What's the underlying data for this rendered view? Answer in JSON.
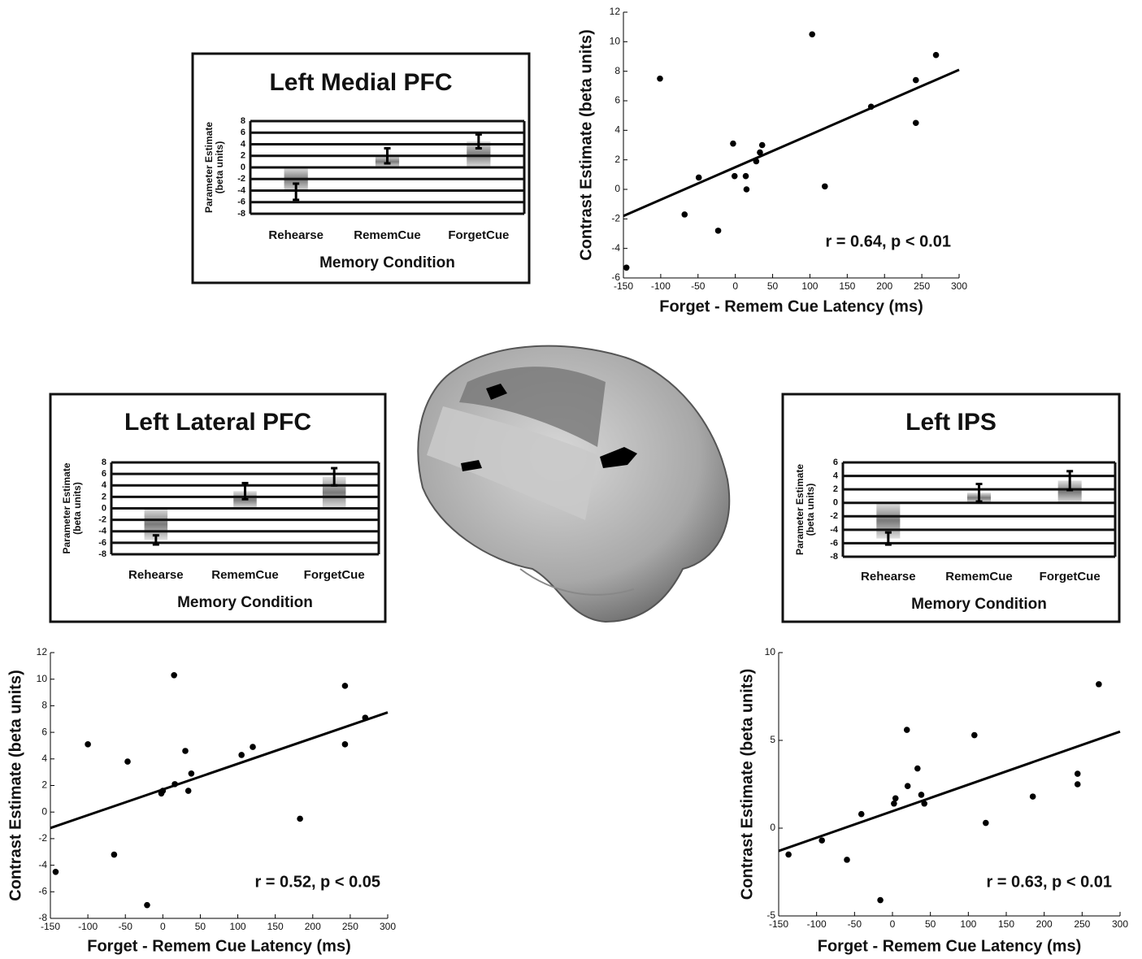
{
  "chart_data": [
    {
      "type": "bar",
      "title": "Left Medial PFC",
      "color": "#7a7a7a",
      "categories": [
        "Rehearse",
        "RememCue",
        "ForgetCue"
      ],
      "values": [
        -4.2,
        2,
        4.5
      ],
      "errors": [
        1.4,
        1.3,
        1.2
      ],
      "ylim": [
        -8,
        8
      ],
      "yticks": [
        -8,
        -6,
        -4,
        -2,
        0,
        2,
        4,
        6,
        8
      ],
      "ylabel": [
        "Parameter Estimate",
        "(beta units)"
      ],
      "xlabel": "Memory Condition",
      "grid": true
    },
    {
      "type": "scatter",
      "color": "#000000",
      "x": [
        -146,
        -101,
        -68,
        -49,
        -23,
        -3,
        -1,
        14,
        15,
        28,
        33,
        36,
        103,
        120,
        182,
        242,
        242,
        269
      ],
      "values": [
        -5.3,
        7.5,
        -1.7,
        0.8,
        -2.8,
        3.1,
        0.9,
        0.9,
        0,
        1.9,
        2.5,
        3.0,
        10.5,
        0.2,
        5.6,
        7.4,
        4.5,
        9.1
      ],
      "fit": {
        "x": [
          -150,
          300
        ],
        "y": [
          -1.8,
          8.1
        ]
      },
      "xlim": [
        -150,
        300
      ],
      "xticks": [
        -150,
        -100,
        -50,
        0,
        50,
        100,
        150,
        200,
        250,
        300
      ],
      "ylim": [
        -6,
        12
      ],
      "yticks": [
        -6,
        -4,
        -2,
        0,
        2,
        4,
        6,
        8,
        10,
        12
      ],
      "xlabel": "Forget - Remem Cue Latency (ms)",
      "ylabel": "Contrast Estimate (beta units)",
      "annotation": "r = 0.64, p < 0.01"
    },
    {
      "type": "bar",
      "title": "Left Lateral PFC",
      "color": "#7a7a7a",
      "categories": [
        "Rehearse",
        "RememCue",
        "ForgetCue"
      ],
      "values": [
        -5.5,
        3,
        5.5
      ],
      "errors": [
        0.8,
        1.4,
        1.5
      ],
      "ylim": [
        -8,
        8
      ],
      "yticks": [
        -8,
        -6,
        -4,
        -2,
        0,
        2,
        4,
        6,
        8
      ],
      "ylabel": [
        "Parameter Estimate",
        "(beta units)"
      ],
      "xlabel": "Memory Condition",
      "grid": true
    },
    {
      "type": "bar",
      "title": "Left IPS",
      "color": "#7a7a7a",
      "categories": [
        "Rehearse",
        "RememCue",
        "ForgetCue"
      ],
      "values": [
        -5.3,
        1.5,
        3.3
      ],
      "errors": [
        0.9,
        1.3,
        1.4
      ],
      "ylim": [
        -8,
        6
      ],
      "yticks": [
        -8,
        -6,
        -4,
        -2,
        0,
        2,
        4,
        6
      ],
      "ylabel": [
        "Parameter Estimate",
        "(beta units)"
      ],
      "xlabel": "Memory Condition",
      "grid": true
    },
    {
      "type": "scatter",
      "color": "#000000",
      "x": [
        -143,
        -100,
        -65,
        -47,
        -21,
        -2,
        0,
        15,
        16,
        30,
        34,
        38,
        105,
        120,
        183,
        243,
        243,
        270
      ],
      "values": [
        -4.5,
        5.1,
        -3.2,
        3.8,
        -7.0,
        1.4,
        1.6,
        10.3,
        2.1,
        4.6,
        1.6,
        2.9,
        4.3,
        4.9,
        -0.5,
        9.5,
        5.1,
        7.1
      ],
      "fit": {
        "x": [
          -150,
          300
        ],
        "y": [
          -1.2,
          7.5
        ]
      },
      "xlim": [
        -150,
        300
      ],
      "xticks": [
        -150,
        -100,
        -50,
        0,
        50,
        100,
        150,
        200,
        250,
        300
      ],
      "ylim": [
        -8,
        12
      ],
      "yticks": [
        -8,
        -6,
        -4,
        -2,
        0,
        2,
        4,
        6,
        8,
        10,
        12
      ],
      "xlabel": "Forget - Remem Cue Latency (ms)",
      "ylabel": "Contrast Estimate (beta units)",
      "annotation": "r = 0.52, p < 0.05"
    },
    {
      "type": "scatter",
      "color": "#000000",
      "x": [
        -137,
        -93,
        -60,
        -41,
        -16,
        2,
        4,
        19,
        20,
        33,
        38,
        42,
        108,
        123,
        185,
        244,
        244,
        272
      ],
      "values": [
        -1.5,
        -0.7,
        -1.8,
        0.8,
        -4.1,
        1.4,
        1.7,
        5.6,
        2.4,
        3.4,
        1.9,
        1.4,
        5.3,
        0.3,
        1.8,
        3.1,
        2.5,
        8.2
      ],
      "fit": {
        "x": [
          -150,
          300
        ],
        "y": [
          -1.3,
          5.5
        ]
      },
      "xlim": [
        -150,
        300
      ],
      "xticks": [
        -150,
        -100,
        -50,
        0,
        50,
        100,
        150,
        200,
        250,
        300
      ],
      "ylim": [
        -5,
        10
      ],
      "yticks": [
        -5,
        0,
        5,
        10
      ],
      "xlabel": "Forget - Remem Cue Latency (ms)",
      "ylabel": "Contrast Estimate (beta units)",
      "annotation": "r = 0.63, p < 0.01"
    }
  ]
}
